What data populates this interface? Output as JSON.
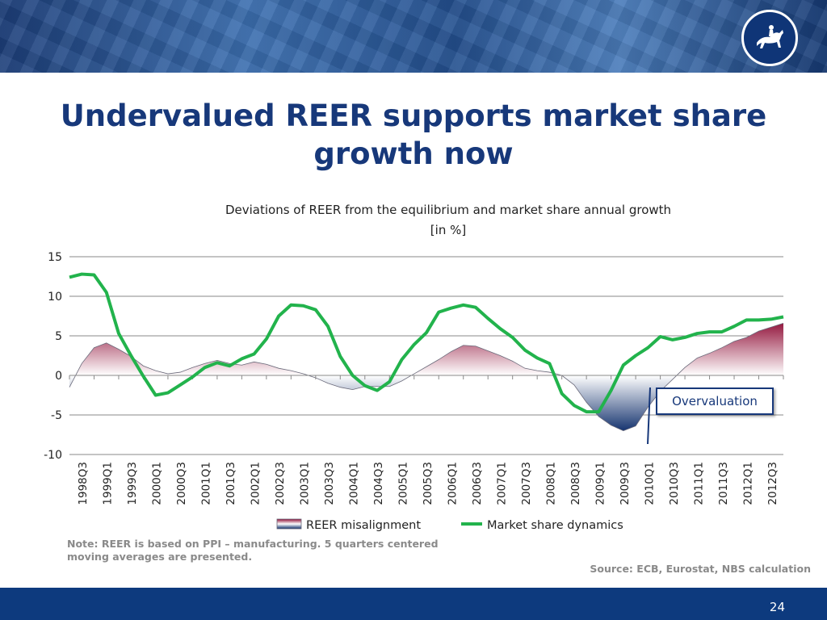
{
  "slide": {
    "title_line1": "Undervalued REER supports market share",
    "title_line2": "growth now",
    "note": "Note: REER  is based on PPI – manufacturing. 5 quarters centered moving averages are presented.",
    "source": "Source: ECB, Eurostat, NBS calculation",
    "page_number": "24",
    "logo_icon": "horse-rider-icon"
  },
  "colors": {
    "title": "#17387a",
    "market_share_line": "#22b34c",
    "misalignment_positive": "#8e0b34",
    "misalignment_negative": "#0f2e6b",
    "footer": "#0d3a7e"
  },
  "chart_data": {
    "type": "area",
    "title_line1": "Deviations of REER  from the equilibrium and market share annual growth",
    "title_line2": "[in %]",
    "ylim": [
      -10,
      15
    ],
    "yticks": [
      "15",
      "10",
      "5",
      "0",
      "-5",
      "-10"
    ],
    "grid": true,
    "legend_position": "bottom",
    "tick_labels": [
      "1998Q3",
      "1999Q1",
      "1999Q3",
      "2000Q1",
      "2000Q3",
      "2001Q1",
      "2001Q3",
      "2002Q1",
      "2002Q3",
      "2003Q1",
      "2003Q3",
      "2004Q1",
      "2004Q3",
      "2005Q1",
      "2005Q3",
      "2006Q1",
      "2006Q3",
      "2007Q1",
      "2007Q3",
      "2008Q1",
      "2008Q3",
      "2009Q1",
      "2009Q3",
      "2010Q1",
      "2010Q3",
      "2011Q1",
      "2011Q3",
      "2012Q1",
      "2012Q3"
    ],
    "x": [
      "1998Q2",
      "1998Q3",
      "1998Q4",
      "1999Q1",
      "1999Q2",
      "1999Q3",
      "1999Q4",
      "2000Q1",
      "2000Q2",
      "2000Q3",
      "2000Q4",
      "2001Q1",
      "2001Q2",
      "2001Q3",
      "2001Q4",
      "2002Q1",
      "2002Q2",
      "2002Q3",
      "2002Q4",
      "2003Q1",
      "2003Q2",
      "2003Q3",
      "2003Q4",
      "2004Q1",
      "2004Q2",
      "2004Q3",
      "2004Q4",
      "2005Q1",
      "2005Q2",
      "2005Q3",
      "2005Q4",
      "2006Q1",
      "2006Q2",
      "2006Q3",
      "2006Q4",
      "2007Q1",
      "2007Q2",
      "2007Q3",
      "2007Q4",
      "2008Q1",
      "2008Q2",
      "2008Q3",
      "2008Q4",
      "2009Q1",
      "2009Q2",
      "2009Q3",
      "2009Q4",
      "2010Q1",
      "2010Q2",
      "2010Q3",
      "2010Q4",
      "2011Q1",
      "2011Q2",
      "2011Q3",
      "2011Q4",
      "2012Q1",
      "2012Q2",
      "2012Q3",
      "2012Q4"
    ],
    "series": [
      {
        "name": "REER misalignment",
        "kind": "area",
        "values": [
          -1.5,
          1.5,
          3.5,
          4.1,
          3.3,
          2.4,
          1.2,
          0.6,
          0.2,
          0.4,
          1.0,
          1.5,
          1.9,
          1.5,
          1.3,
          1.7,
          1.4,
          0.9,
          0.6,
          0.2,
          -0.3,
          -1.0,
          -1.5,
          -1.8,
          -1.4,
          -1.4,
          -1.4,
          -0.7,
          0.2,
          1.1,
          2.0,
          3.0,
          3.8,
          3.7,
          3.1,
          2.5,
          1.8,
          0.9,
          0.6,
          0.4,
          0.0,
          -1.2,
          -3.4,
          -5.2,
          -6.3,
          -7.0,
          -6.4,
          -4.0,
          -2.0,
          -0.5,
          1.0,
          2.2,
          2.8,
          3.5,
          4.3,
          4.8,
          5.6,
          6.1,
          6.6
        ]
      },
      {
        "name": "Market share dynamics",
        "kind": "line",
        "values": [
          12.4,
          12.8,
          12.7,
          10.5,
          5.3,
          2.5,
          -0.1,
          -2.5,
          -2.2,
          -1.2,
          -0.2,
          1.0,
          1.6,
          1.2,
          2.1,
          2.7,
          4.6,
          7.5,
          8.9,
          8.8,
          8.3,
          6.2,
          2.4,
          0.0,
          -1.3,
          -1.9,
          -0.8,
          2.0,
          3.9,
          5.4,
          8.0,
          8.5,
          8.9,
          8.6,
          7.2,
          5.9,
          4.8,
          3.2,
          2.2,
          1.5,
          -2.3,
          -3.8,
          -4.6,
          -4.6,
          -1.9,
          1.3,
          2.5,
          3.5,
          4.9,
          4.5,
          4.8,
          5.3,
          5.5,
          5.5,
          6.2,
          7.0,
          7.0,
          7.1,
          7.4
        ]
      }
    ],
    "annotations": [
      "Overvaluation"
    ]
  }
}
